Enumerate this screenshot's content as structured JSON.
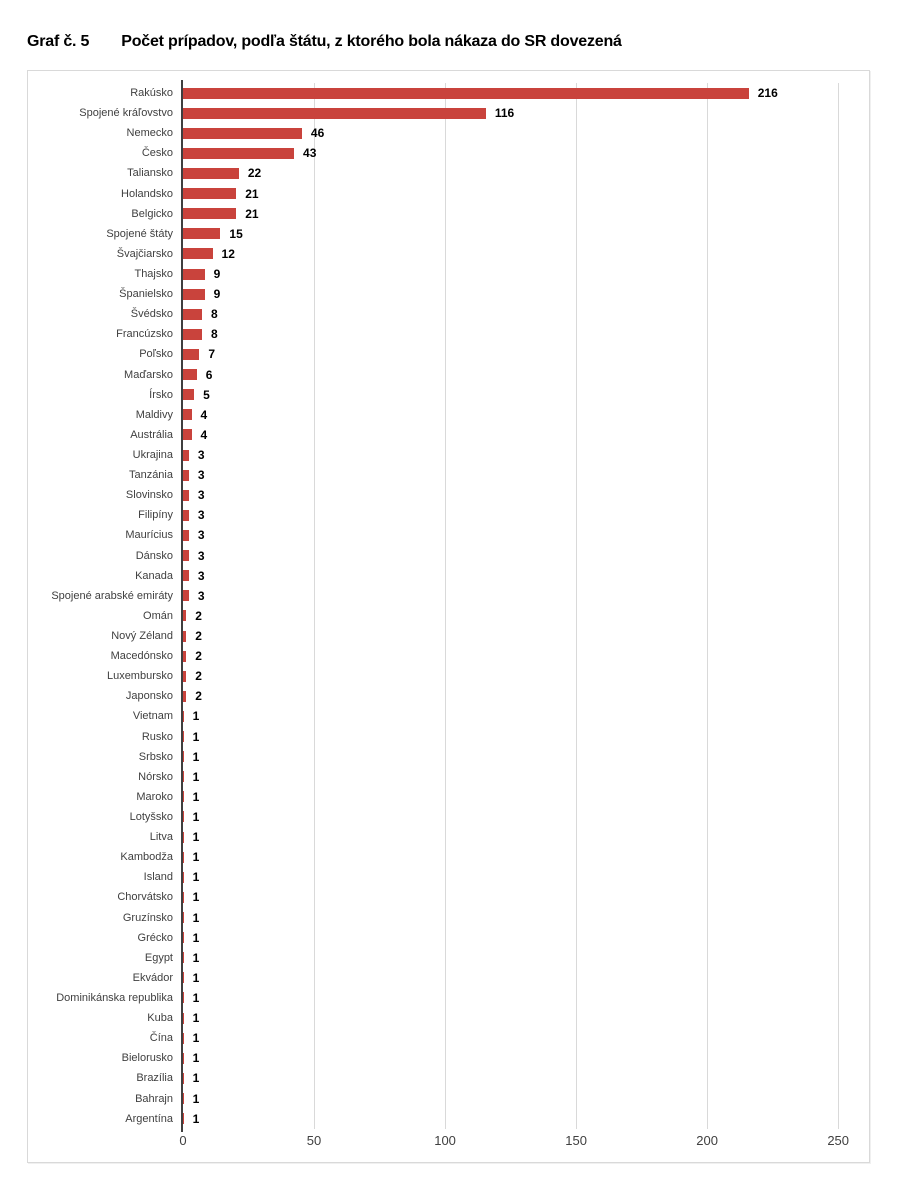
{
  "title": {
    "prefix": "Graf č. 5",
    "text": "Počet prípadov, podľa štátu, z ktorého bola nákaza do SR dovezená"
  },
  "colors": {
    "bar": "#C9433C",
    "axis_line": "#3F3F3F",
    "gridline": "#D9D9D9",
    "frame_border": "#D9D9D9",
    "label_text": "#404040",
    "value_text": "#000000"
  },
  "chart_data": {
    "type": "bar",
    "orientation": "horizontal",
    "title": "Graf č. 5  Počet prípadov, podľa štátu, z ktorého bola nákaza do SR dovezená",
    "xlabel": "",
    "ylabel": "",
    "grid": true,
    "x_ticks": [
      0,
      50,
      100,
      150,
      200,
      250
    ],
    "xlim": [
      0,
      261
    ],
    "value_labels": true,
    "categories": [
      "Rakúsko",
      "Spojené kráľovstvo",
      "Nemecko",
      "Česko",
      "Taliansko",
      "Holandsko",
      "Belgicko",
      "Spojené štáty",
      "Švajčiarsko",
      "Thajsko",
      "Španielsko",
      "Švédsko",
      "Francúzsko",
      "Poľsko",
      "Maďarsko",
      "Írsko",
      "Maldivy",
      "Austrália",
      "Ukrajina",
      "Tanzánia",
      "Slovinsko",
      "Filipíny",
      "Maurícius",
      "Dánsko",
      "Kanada",
      "Spojené arabské emiráty",
      "Omán",
      "Nový Zéland",
      "Macedónsko",
      "Luxembursko",
      "Japonsko",
      "Vietnam",
      "Rusko",
      "Srbsko",
      "Nórsko",
      "Maroko",
      "Lotyšsko",
      "Litva",
      "Kambodža",
      "Island",
      "Chorvátsko",
      "Gruzínsko",
      "Grécko",
      "Egypt",
      "Ekvádor",
      "Dominikánska republika",
      "Kuba",
      "Čína",
      "Bielorusko",
      "Brazília",
      "Bahrajn",
      "Argentína"
    ],
    "values": [
      216,
      116,
      46,
      43,
      22,
      21,
      21,
      15,
      12,
      9,
      9,
      8,
      8,
      7,
      6,
      5,
      4,
      4,
      3,
      3,
      3,
      3,
      3,
      3,
      3,
      3,
      2,
      2,
      2,
      2,
      2,
      1,
      1,
      1,
      1,
      1,
      1,
      1,
      1,
      1,
      1,
      1,
      1,
      1,
      1,
      1,
      1,
      1,
      1,
      1,
      1,
      1
    ]
  }
}
